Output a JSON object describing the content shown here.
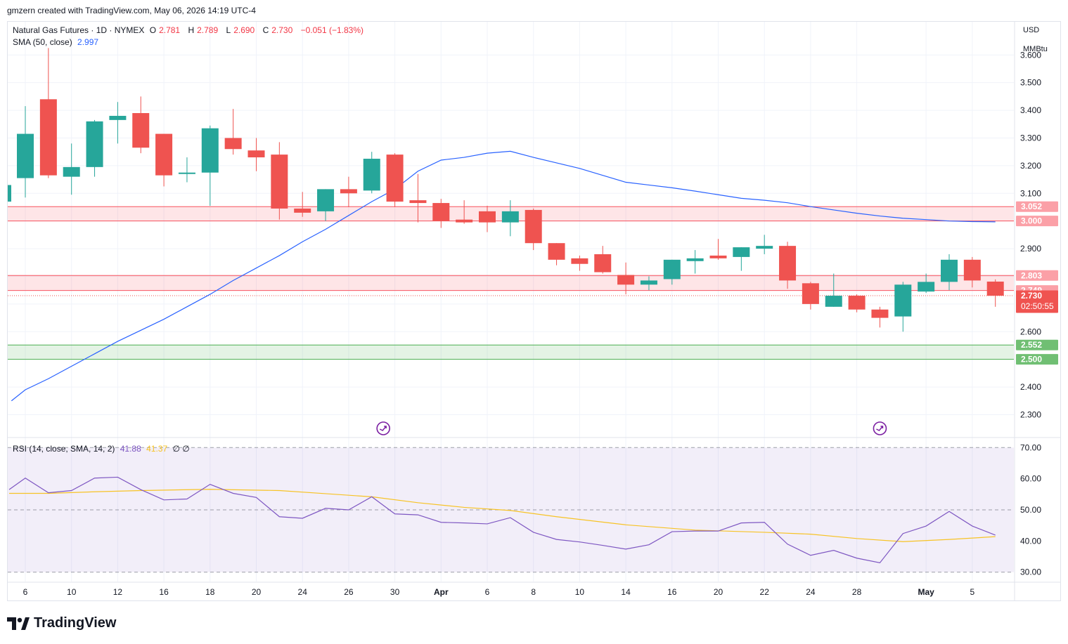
{
  "header": {
    "created_by": "gmzern created with TradingView.com, May 06, 2026 14:19 UTC-4"
  },
  "legend": {
    "symbol": "Natural Gas Futures · 1D · NYMEX",
    "o_label": "O",
    "o_value": "2.781",
    "h_label": "H",
    "h_value": "2.789",
    "l_label": "L",
    "l_value": "2.690",
    "c_label": "C",
    "c_value": "2.730",
    "change": "−0.051 (−1.83%)",
    "sma_label": "SMA (50, close)",
    "sma_value": "2.997",
    "rsi_label": "RSI (14, close, SMA, 14, 2)",
    "rsi_value": "41.88",
    "rsi_sma_value": "41.37",
    "rsi_extra": "∅ ∅"
  },
  "currency": "USD",
  "unit": "MMBtu",
  "countdown": "02:50:55",
  "brand": "TradingView",
  "colors": {
    "up": "#26a69a",
    "down": "#ef5350",
    "sma": "#2962ff",
    "rsi": "#7e57c2",
    "rsi_sma": "#f7c325",
    "resistance": "#f7525f",
    "support": "#4caf50"
  },
  "chart_data": [
    {
      "type": "candlestick",
      "title": "Natural Gas Futures · 1D · NYMEX",
      "ylim": [
        2.22,
        3.72
      ],
      "yticks": [
        2.3,
        2.4,
        2.6,
        2.9,
        3.1,
        3.2,
        3.3,
        3.4,
        3.5,
        3.6
      ],
      "x_ticks": [
        {
          "i": 0,
          "label": "6"
        },
        {
          "i": 2,
          "label": "10"
        },
        {
          "i": 4,
          "label": "12"
        },
        {
          "i": 6,
          "label": "16"
        },
        {
          "i": 8,
          "label": "18"
        },
        {
          "i": 10,
          "label": "20"
        },
        {
          "i": 12,
          "label": "24"
        },
        {
          "i": 14,
          "label": "26"
        },
        {
          "i": 16,
          "label": "30"
        },
        {
          "i": 18,
          "label": "Apr"
        },
        {
          "i": 20,
          "label": "6"
        },
        {
          "i": 22,
          "label": "8"
        },
        {
          "i": 24,
          "label": "10"
        },
        {
          "i": 26,
          "label": "14"
        },
        {
          "i": 28,
          "label": "16"
        },
        {
          "i": 30,
          "label": "20"
        },
        {
          "i": 32,
          "label": "22"
        },
        {
          "i": 34,
          "label": "24"
        },
        {
          "i": 36,
          "label": "28"
        },
        {
          "i": 39,
          "label": "May"
        },
        {
          "i": 41,
          "label": "5"
        }
      ],
      "candles": [
        {
          "o": 3.155,
          "h": 3.415,
          "l": 3.085,
          "c": 3.315
        },
        {
          "o": 3.44,
          "h": 3.625,
          "l": 3.155,
          "c": 3.165
        },
        {
          "o": 3.16,
          "h": 3.28,
          "l": 3.095,
          "c": 3.195
        },
        {
          "o": 3.195,
          "h": 3.365,
          "l": 3.16,
          "c": 3.36
        },
        {
          "o": 3.365,
          "h": 3.43,
          "l": 3.28,
          "c": 3.38
        },
        {
          "o": 3.39,
          "h": 3.45,
          "l": 3.245,
          "c": 3.265
        },
        {
          "o": 3.315,
          "h": 3.315,
          "l": 3.125,
          "c": 3.165
        },
        {
          "o": 3.17,
          "h": 3.23,
          "l": 3.14,
          "c": 3.175
        },
        {
          "o": 3.175,
          "h": 3.345,
          "l": 3.055,
          "c": 3.335
        },
        {
          "o": 3.3,
          "h": 3.405,
          "l": 3.24,
          "c": 3.26
        },
        {
          "o": 3.255,
          "h": 3.3,
          "l": 3.18,
          "c": 3.23
        },
        {
          "o": 3.24,
          "h": 3.285,
          "l": 3.005,
          "c": 3.045
        },
        {
          "o": 3.045,
          "h": 3.105,
          "l": 3.015,
          "c": 3.03
        },
        {
          "o": 3.035,
          "h": 3.115,
          "l": 3.0,
          "c": 3.115
        },
        {
          "o": 3.115,
          "h": 3.16,
          "l": 3.05,
          "c": 3.1
        },
        {
          "o": 3.11,
          "h": 3.25,
          "l": 3.1,
          "c": 3.225
        },
        {
          "o": 3.24,
          "h": 3.245,
          "l": 3.05,
          "c": 3.07
        },
        {
          "o": 3.075,
          "h": 3.17,
          "l": 2.995,
          "c": 3.065
        },
        {
          "o": 3.065,
          "h": 3.08,
          "l": 2.975,
          "c": 3.0
        },
        {
          "o": 3.005,
          "h": 3.075,
          "l": 2.99,
          "c": 2.995
        },
        {
          "o": 3.035,
          "h": 3.055,
          "l": 2.96,
          "c": 2.995
        },
        {
          "o": 2.995,
          "h": 3.075,
          "l": 2.945,
          "c": 3.035
        },
        {
          "o": 3.04,
          "h": 3.045,
          "l": 2.895,
          "c": 2.92
        },
        {
          "o": 2.92,
          "h": 2.92,
          "l": 2.84,
          "c": 2.86
        },
        {
          "o": 2.865,
          "h": 2.875,
          "l": 2.82,
          "c": 2.845
        },
        {
          "o": 2.88,
          "h": 2.91,
          "l": 2.81,
          "c": 2.815
        },
        {
          "o": 2.805,
          "h": 2.85,
          "l": 2.735,
          "c": 2.77
        },
        {
          "o": 2.77,
          "h": 2.8,
          "l": 2.75,
          "c": 2.785
        },
        {
          "o": 2.79,
          "h": 2.86,
          "l": 2.77,
          "c": 2.86
        },
        {
          "o": 2.855,
          "h": 2.895,
          "l": 2.81,
          "c": 2.865
        },
        {
          "o": 2.875,
          "h": 2.935,
          "l": 2.86,
          "c": 2.865
        },
        {
          "o": 2.87,
          "h": 2.905,
          "l": 2.82,
          "c": 2.905
        },
        {
          "o": 2.9,
          "h": 2.95,
          "l": 2.88,
          "c": 2.91
        },
        {
          "o": 2.91,
          "h": 2.925,
          "l": 2.755,
          "c": 2.785
        },
        {
          "o": 2.775,
          "h": 2.78,
          "l": 2.68,
          "c": 2.7
        },
        {
          "o": 2.69,
          "h": 2.81,
          "l": 2.69,
          "c": 2.73
        },
        {
          "o": 2.73,
          "h": 2.735,
          "l": 2.67,
          "c": 2.68
        },
        {
          "o": 2.68,
          "h": 2.69,
          "l": 2.615,
          "c": 2.65
        },
        {
          "o": 2.655,
          "h": 2.78,
          "l": 2.6,
          "c": 2.77
        },
        {
          "o": 2.745,
          "h": 2.81,
          "l": 2.74,
          "c": 2.78
        },
        {
          "o": 2.78,
          "h": 2.88,
          "l": 2.75,
          "c": 2.86
        },
        {
          "o": 2.86,
          "h": 2.87,
          "l": 2.76,
          "c": 2.785
        },
        {
          "o": 2.781,
          "h": 2.789,
          "l": 2.69,
          "c": 2.73
        }
      ],
      "sma50": [
        {
          "i": -0.6,
          "v": 2.35
        },
        {
          "i": 0,
          "v": 2.39
        },
        {
          "i": 1,
          "v": 2.43
        },
        {
          "i": 2,
          "v": 2.475
        },
        {
          "i": 3,
          "v": 2.52
        },
        {
          "i": 4,
          "v": 2.565
        },
        {
          "i": 5,
          "v": 2.605
        },
        {
          "i": 6,
          "v": 2.645
        },
        {
          "i": 7,
          "v": 2.69
        },
        {
          "i": 8,
          "v": 2.735
        },
        {
          "i": 9,
          "v": 2.785
        },
        {
          "i": 10,
          "v": 2.83
        },
        {
          "i": 11,
          "v": 2.875
        },
        {
          "i": 12,
          "v": 2.925
        },
        {
          "i": 13,
          "v": 2.97
        },
        {
          "i": 14,
          "v": 3.02
        },
        {
          "i": 15,
          "v": 3.07
        },
        {
          "i": 16,
          "v": 3.115
        },
        {
          "i": 17,
          "v": 3.18
        },
        {
          "i": 18,
          "v": 3.22
        },
        {
          "i": 19,
          "v": 3.23
        },
        {
          "i": 20,
          "v": 3.245
        },
        {
          "i": 21,
          "v": 3.252
        },
        {
          "i": 22,
          "v": 3.23
        },
        {
          "i": 23,
          "v": 3.21
        },
        {
          "i": 24,
          "v": 3.19
        },
        {
          "i": 25,
          "v": 3.165
        },
        {
          "i": 26,
          "v": 3.14
        },
        {
          "i": 27,
          "v": 3.13
        },
        {
          "i": 28,
          "v": 3.12
        },
        {
          "i": 29,
          "v": 3.108
        },
        {
          "i": 30,
          "v": 3.095
        },
        {
          "i": 31,
          "v": 3.082
        },
        {
          "i": 32,
          "v": 3.075
        },
        {
          "i": 33,
          "v": 3.066
        },
        {
          "i": 34,
          "v": 3.052
        },
        {
          "i": 35,
          "v": 3.04
        },
        {
          "i": 36,
          "v": 3.028
        },
        {
          "i": 37,
          "v": 3.018
        },
        {
          "i": 38,
          "v": 3.01
        },
        {
          "i": 39,
          "v": 3.005
        },
        {
          "i": 40,
          "v": 3.0
        },
        {
          "i": 41,
          "v": 2.998
        },
        {
          "i": 42,
          "v": 2.997
        }
      ],
      "zones": [
        {
          "kind": "resistance",
          "from": 3.0,
          "to": 3.052
        },
        {
          "kind": "resistance",
          "from": 2.749,
          "to": 2.803
        },
        {
          "kind": "support",
          "from": 2.5,
          "to": 2.552
        }
      ],
      "price_tags": [
        {
          "v": 3.052,
          "label": "3.052",
          "kind": "resistance"
        },
        {
          "v": 3.0,
          "label": "3.000",
          "kind": "resistance"
        },
        {
          "v": 2.803,
          "label": "2.803",
          "kind": "resistance"
        },
        {
          "v": 2.749,
          "label": "2.749",
          "kind": "resistance"
        },
        {
          "v": 2.73,
          "label": "2.730",
          "kind": "last"
        },
        {
          "v": 2.552,
          "label": "2.552",
          "kind": "support"
        },
        {
          "v": 2.5,
          "label": "2.500",
          "kind": "support"
        }
      ],
      "event_markers": [
        15.5,
        37
      ]
    },
    {
      "type": "line",
      "title": "RSI (14, close, SMA, 14, 2)",
      "ylim": [
        27,
        73
      ],
      "yticks": [
        30,
        40,
        50,
        60,
        70
      ],
      "band": [
        30,
        70
      ],
      "series": [
        {
          "name": "RSI",
          "values": [
            {
              "i": -0.7,
              "v": 56.5
            },
            {
              "i": 0,
              "v": 60.2
            },
            {
              "i": 1,
              "v": 55.5
            },
            {
              "i": 2,
              "v": 56.2
            },
            {
              "i": 3,
              "v": 60.2
            },
            {
              "i": 4,
              "v": 60.5
            },
            {
              "i": 5,
              "v": 56.5
            },
            {
              "i": 6,
              "v": 53.2
            },
            {
              "i": 7,
              "v": 53.5
            },
            {
              "i": 8,
              "v": 58.2
            },
            {
              "i": 9,
              "v": 55.3
            },
            {
              "i": 10,
              "v": 54.0
            },
            {
              "i": 11,
              "v": 47.8
            },
            {
              "i": 12,
              "v": 47.3
            },
            {
              "i": 13,
              "v": 50.5
            },
            {
              "i": 14,
              "v": 50.0
            },
            {
              "i": 15,
              "v": 54.2
            },
            {
              "i": 16,
              "v": 48.7
            },
            {
              "i": 17,
              "v": 48.4
            },
            {
              "i": 18,
              "v": 46.0
            },
            {
              "i": 19,
              "v": 45.8
            },
            {
              "i": 20,
              "v": 45.5
            },
            {
              "i": 21,
              "v": 47.5
            },
            {
              "i": 22,
              "v": 42.8
            },
            {
              "i": 23,
              "v": 40.5
            },
            {
              "i": 24,
              "v": 39.7
            },
            {
              "i": 25,
              "v": 38.6
            },
            {
              "i": 26,
              "v": 37.4
            },
            {
              "i": 27,
              "v": 38.8
            },
            {
              "i": 28,
              "v": 43.0
            },
            {
              "i": 29,
              "v": 43.2
            },
            {
              "i": 30,
              "v": 43.2
            },
            {
              "i": 31,
              "v": 45.8
            },
            {
              "i": 32,
              "v": 46.0
            },
            {
              "i": 33,
              "v": 39.0
            },
            {
              "i": 34,
              "v": 35.4
            },
            {
              "i": 35,
              "v": 37.0
            },
            {
              "i": 36,
              "v": 34.5
            },
            {
              "i": 37,
              "v": 33.0
            },
            {
              "i": 38,
              "v": 42.4
            },
            {
              "i": 39,
              "v": 44.8
            },
            {
              "i": 40,
              "v": 49.5
            },
            {
              "i": 41,
              "v": 44.8
            },
            {
              "i": 42,
              "v": 41.9
            }
          ]
        },
        {
          "name": "RSI SMA",
          "values": [
            {
              "i": -0.7,
              "v": 55.3
            },
            {
              "i": 1,
              "v": 55.3
            },
            {
              "i": 3,
              "v": 55.8
            },
            {
              "i": 5,
              "v": 56.2
            },
            {
              "i": 8,
              "v": 56.6
            },
            {
              "i": 11,
              "v": 56.2
            },
            {
              "i": 13,
              "v": 55.2
            },
            {
              "i": 15,
              "v": 54.2
            },
            {
              "i": 17,
              "v": 52.3
            },
            {
              "i": 19,
              "v": 50.8
            },
            {
              "i": 21,
              "v": 49.8
            },
            {
              "i": 23,
              "v": 47.8
            },
            {
              "i": 26,
              "v": 45.2
            },
            {
              "i": 29,
              "v": 43.5
            },
            {
              "i": 32,
              "v": 42.8
            },
            {
              "i": 34,
              "v": 42.2
            },
            {
              "i": 36,
              "v": 40.8
            },
            {
              "i": 38,
              "v": 39.8
            },
            {
              "i": 40,
              "v": 40.5
            },
            {
              "i": 42,
              "v": 41.4
            }
          ]
        }
      ]
    }
  ]
}
